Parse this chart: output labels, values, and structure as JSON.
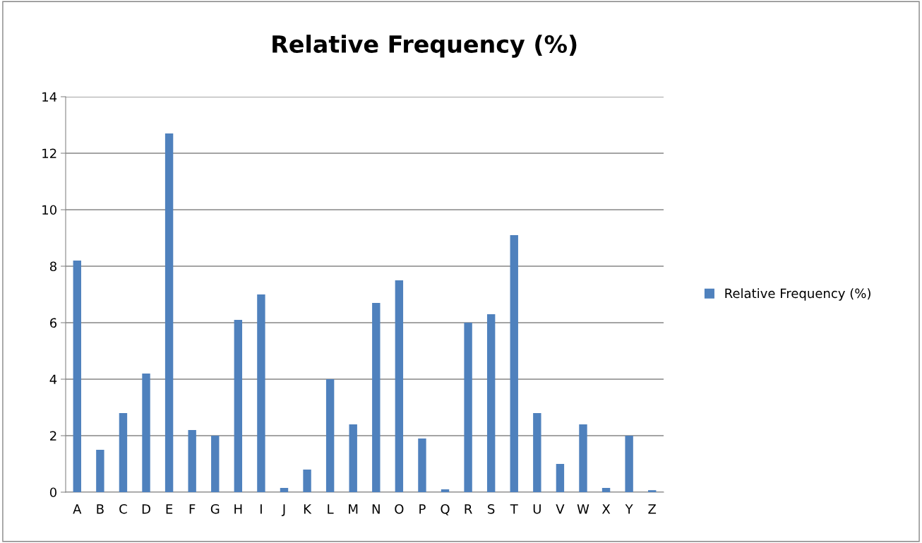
{
  "chart_data": {
    "type": "bar",
    "title": "Relative Frequency (%)",
    "categories": [
      "A",
      "B",
      "C",
      "D",
      "E",
      "F",
      "G",
      "H",
      "I",
      "J",
      "K",
      "L",
      "M",
      "N",
      "O",
      "P",
      "Q",
      "R",
      "S",
      "T",
      "U",
      "V",
      "W",
      "X",
      "Y",
      "Z"
    ],
    "series": [
      {
        "name": "Relative Frequency (%)",
        "color": "#4f81bd",
        "values": [
          8.2,
          1.5,
          2.8,
          4.2,
          12.7,
          2.2,
          2.0,
          6.1,
          7.0,
          0.15,
          0.8,
          4.0,
          2.4,
          6.7,
          7.5,
          1.9,
          0.1,
          6.0,
          6.3,
          9.1,
          2.8,
          1.0,
          2.4,
          0.15,
          2.0,
          0.07
        ]
      }
    ],
    "ylim": [
      0,
      14
    ],
    "yticks": [
      0,
      2,
      4,
      6,
      8,
      10,
      12,
      14
    ],
    "grid": "y",
    "legend": "right"
  }
}
